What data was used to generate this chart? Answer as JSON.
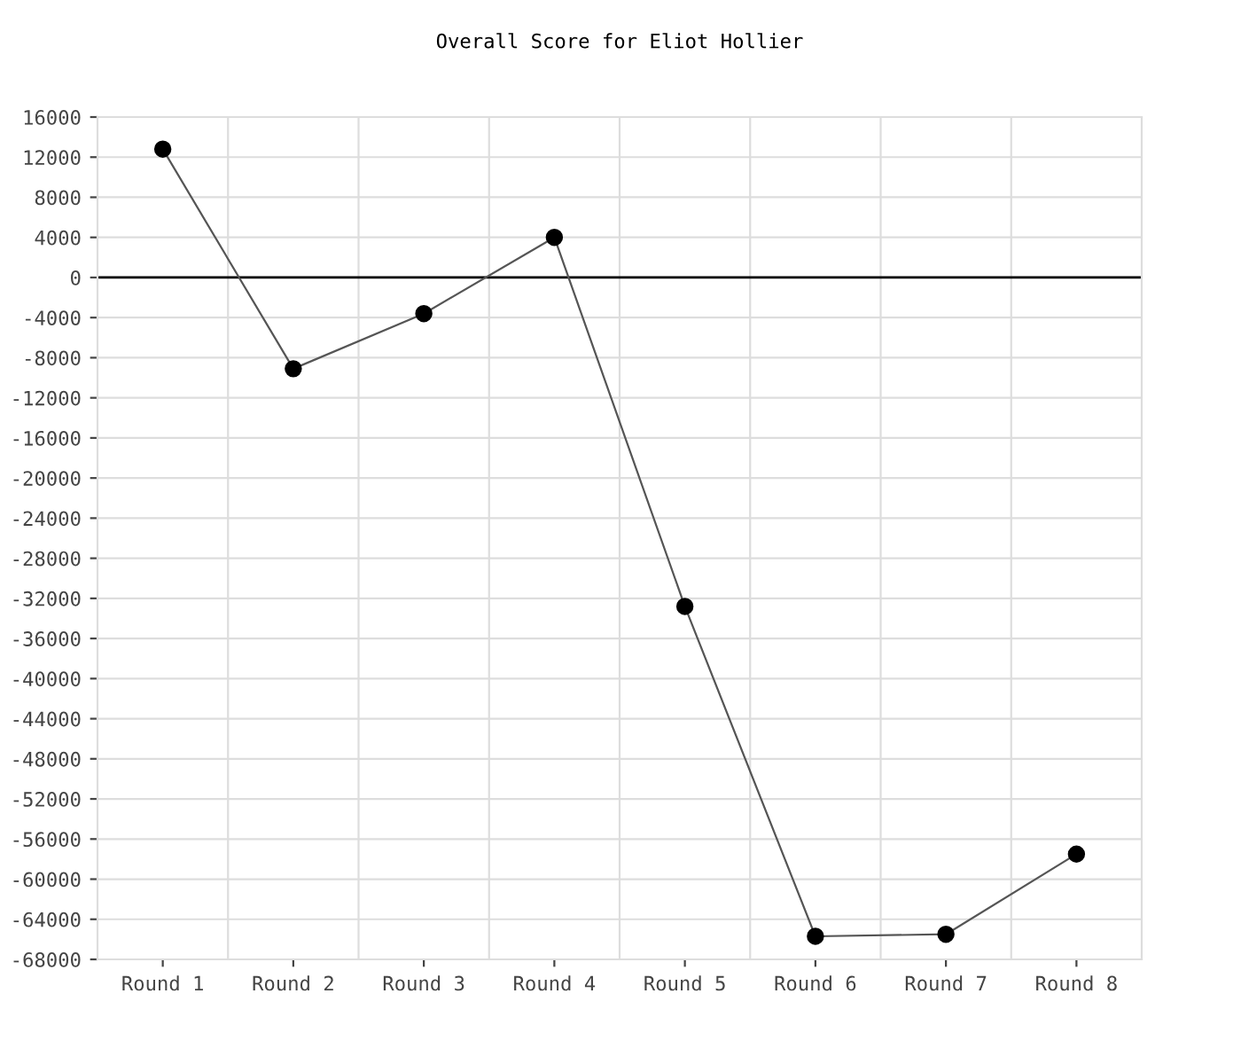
{
  "chart_data": {
    "type": "line",
    "title": "Overall Score for Eliot Hollier",
    "categories": [
      "Round 1",
      "Round 2",
      "Round 3",
      "Round 4",
      "Round 5",
      "Round 6",
      "Round 7",
      "Round 8"
    ],
    "series": [
      {
        "color": "#000000",
        "values": [
          12800,
          -9100,
          -3600,
          4000,
          -32800,
          -65700,
          -65500,
          -57500
        ]
      }
    ],
    "ylim": [
      -68000,
      16000
    ],
    "yticks": [
      -68000,
      -64000,
      -60000,
      -56000,
      -52000,
      -48000,
      -44000,
      -40000,
      -36000,
      -32000,
      -28000,
      -24000,
      -20000,
      -16000,
      -12000,
      -8000,
      -4000,
      0,
      4000,
      8000,
      12000,
      16000
    ],
    "ref_lines": [
      {
        "axis": "y",
        "value": 0,
        "color": "#000000"
      }
    ],
    "grid": true,
    "marker": "circle",
    "line_style": "solid",
    "legend": false
  }
}
